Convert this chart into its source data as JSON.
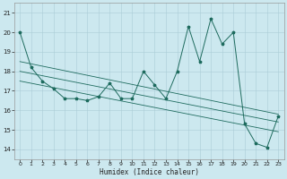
{
  "xlabel": "Humidex (Indice chaleur)",
  "background_color": "#cce8ef",
  "line_color": "#1e6b5e",
  "grid_color": "#aacdd6",
  "xlim": [
    -0.5,
    23.5
  ],
  "ylim": [
    13.5,
    21.5
  ],
  "yticks": [
    14,
    15,
    16,
    17,
    18,
    19,
    20,
    21
  ],
  "xticks": [
    0,
    1,
    2,
    3,
    4,
    5,
    6,
    7,
    8,
    9,
    10,
    11,
    12,
    13,
    14,
    15,
    16,
    17,
    18,
    19,
    20,
    21,
    22,
    23
  ],
  "y_main": [
    20.0,
    18.2,
    17.5,
    17.1,
    16.6,
    16.6,
    16.5,
    16.7,
    17.4,
    16.6,
    16.6,
    18.0,
    17.3,
    16.6,
    18.0,
    20.3,
    18.5,
    20.7,
    19.4,
    20.0,
    15.3,
    14.3,
    14.1,
    15.7
  ],
  "regression_lines": [
    {
      "x0": 0,
      "y0": 18.5,
      "x1": 23,
      "y1": 15.8
    },
    {
      "x0": 0,
      "y0": 18.0,
      "x1": 23,
      "y1": 15.4
    },
    {
      "x0": 0,
      "y0": 17.5,
      "x1": 23,
      "y1": 14.9
    }
  ],
  "xlabel_fontsize": 5.5,
  "tick_fontsize": 4.5,
  "linewidth": 0.7,
  "marker_size": 2.5
}
